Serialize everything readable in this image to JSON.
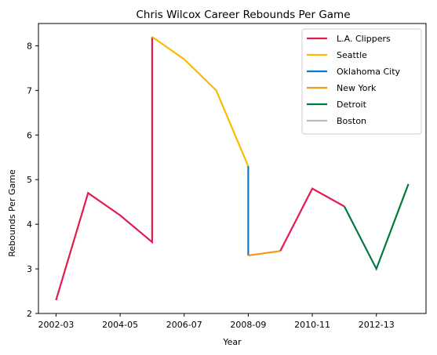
{
  "chart_data": {
    "type": "line",
    "title": "Chris Wilcox Career Rebounds Per Game",
    "xlabel": "Year",
    "ylabel": "Rebounds Per Game",
    "x_ticks": [
      "2002-03",
      "2004-05",
      "2006-07",
      "2008-09",
      "2010-11",
      "2012-13"
    ],
    "ylim": [
      2,
      8.5
    ],
    "y_ticks": [
      2,
      3,
      4,
      5,
      6,
      7,
      8
    ],
    "legend_position": "top-right",
    "grid": false,
    "series": [
      {
        "name": "L.A. Clippers",
        "color": "#e31b4f",
        "points": [
          {
            "x": 0,
            "y": 2.3
          },
          {
            "x": 1,
            "y": 4.7
          },
          {
            "x": 2,
            "y": 4.2
          },
          {
            "x": 3,
            "y": 3.6
          },
          {
            "x": 3,
            "y": 8.2
          }
        ]
      },
      {
        "name": "Seattle",
        "color": "#fdbb00",
        "points": [
          {
            "x": 3,
            "y": 8.2
          },
          {
            "x": 4,
            "y": 7.7
          },
          {
            "x": 5,
            "y": 7.0
          },
          {
            "x": 6,
            "y": 5.3
          }
        ]
      },
      {
        "name": "Oklahoma City",
        "color": "#0d7ac1",
        "points": [
          {
            "x": 6,
            "y": 5.3
          },
          {
            "x": 6,
            "y": 3.3
          }
        ]
      },
      {
        "name": "New York",
        "color": "#f59a19",
        "points": [
          {
            "x": 6,
            "y": 3.3
          },
          {
            "x": 7,
            "y": 3.4
          }
        ]
      },
      {
        "name": "",
        "color": "#e31b4f",
        "points": [
          {
            "x": 7,
            "y": 3.4
          },
          {
            "x": 8,
            "y": 4.8
          },
          {
            "x": 9,
            "y": 4.4
          }
        ]
      },
      {
        "name": "Detroit",
        "color": "#007a3a",
        "points": [
          {
            "x": 9,
            "y": 4.4
          },
          {
            "x": 10,
            "y": 3.0
          },
          {
            "x": 11,
            "y": 4.9
          }
        ]
      },
      {
        "name": "Boston",
        "color": "#bbbbbb",
        "points": []
      }
    ]
  }
}
